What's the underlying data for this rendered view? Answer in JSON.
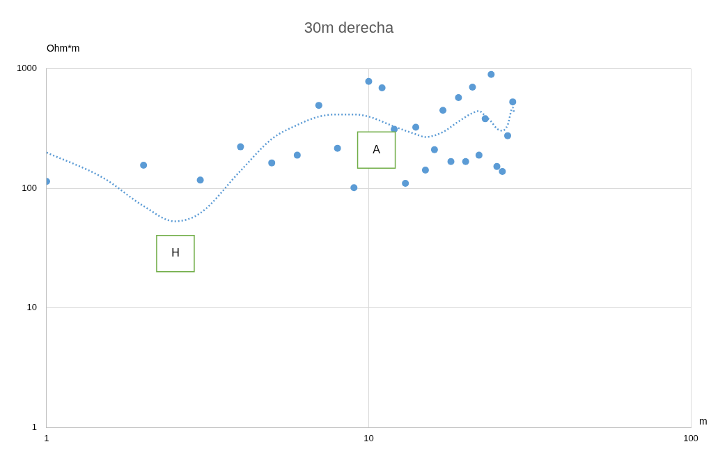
{
  "chart_data": {
    "type": "scatter",
    "title": "30m derecha",
    "xlabel": "m",
    "ylabel": "Ohm*m",
    "log": "xy",
    "xlim": [
      1,
      100
    ],
    "xticks": [
      1,
      10,
      100
    ],
    "ylim": [
      1,
      1000
    ],
    "yticks": [
      1,
      10,
      100,
      1000
    ],
    "grid": true,
    "legend": false,
    "marker": "circle",
    "annotations": [
      "A",
      "H"
    ],
    "series": [
      {
        "color": "#5b9bd5",
        "x": [
          1,
          2,
          3,
          4,
          5,
          6,
          7,
          8,
          9,
          10,
          11,
          12,
          13,
          14,
          15,
          16,
          17,
          18,
          19,
          20,
          21,
          22,
          23,
          24,
          25,
          26,
          27,
          28
        ],
        "values": [
          114,
          156,
          117,
          222,
          163,
          189,
          493,
          216,
          101,
          781,
          690,
          311,
          110,
          324,
          142,
          210,
          448,
          167,
          572,
          167,
          700,
          189,
          381,
          894,
          152,
          138,
          275,
          527
        ]
      },
      {
        "type": "line",
        "color": "#5b9bd5",
        "line_style": "dotted",
        "marker": "none",
        "x": [
          1,
          1.5,
          2,
          2.5,
          3,
          4,
          5,
          6,
          7,
          8,
          9,
          10,
          12,
          14,
          15,
          17,
          19,
          21,
          22,
          23,
          24,
          25,
          26,
          27,
          28,
          28.3
        ],
        "values": [
          199,
          122,
          71,
          53,
          62,
          140,
          258,
          338,
          397,
          414,
          414,
          397,
          328,
          283,
          268,
          295,
          361,
          425,
          442,
          402,
          361,
          315,
          303,
          338,
          473,
          420
        ]
      }
    ]
  }
}
